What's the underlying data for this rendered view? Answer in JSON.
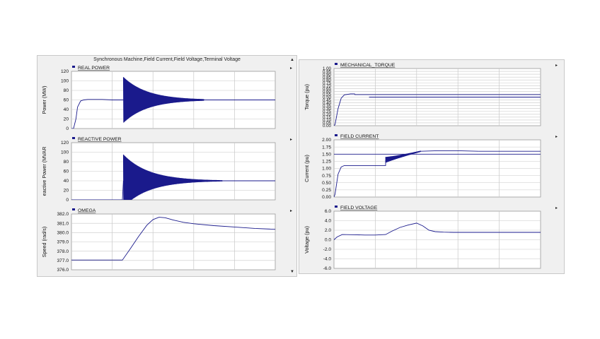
{
  "left_panel": {
    "title": "Synchronous Machine,Field Current,Field Voltage,Terminal Voltage"
  },
  "colors": {
    "trace": "#1a1a8c",
    "grid": "#c8c8c8",
    "plot_bg": "#ffffff",
    "panel_bg": "#f0f0f0"
  },
  "chart_data": [
    {
      "type": "line",
      "legend": "REAL POWER",
      "ylabel": "Power (MW)",
      "ylim": [
        0,
        120
      ],
      "yticks": [
        0,
        20,
        40,
        60,
        80,
        100,
        120
      ],
      "tick_labels": [
        "0",
        "20",
        "40",
        "60",
        "80",
        "100",
        "120"
      ],
      "xlim": [
        0,
        10
      ],
      "grid": true,
      "series": [
        {
          "segments": [
            {
              "x": [
                0.0,
                0.1,
                0.22,
                0.3,
                0.45,
                0.6,
                0.8,
                1.1,
                1.5,
                2.0,
                2.5,
                2.55
              ],
              "y": [
                0,
                0,
                20,
                45,
                58,
                60,
                61,
                61,
                61,
                60,
                60,
                60
              ]
            },
            {
              "x": [
                2.55,
                6.5
              ],
              "y": [
                60,
                60
              ],
              "osc": {
                "center": 60,
                "amp": 48,
                "decay": 0.85,
                "freq": 45
              }
            },
            {
              "x": [
                6.5,
                10.0
              ],
              "y": [
                60,
                60
              ]
            }
          ]
        }
      ]
    },
    {
      "type": "line",
      "legend": "REACTIVE POWER",
      "ylabel": "eactive Power (MVAR",
      "ylim": [
        0,
        120
      ],
      "yticks": [
        0,
        20,
        40,
        60,
        80,
        100,
        120
      ],
      "tick_labels": [
        "0",
        "20",
        "40",
        "60",
        "80",
        "100",
        "120"
      ],
      "xlim": [
        0,
        10
      ],
      "grid": true,
      "series": [
        {
          "segments": [
            {
              "x": [
                0.0,
                2.5,
                2.5,
                2.55
              ],
              "y": [
                0,
                0,
                0,
                40
              ]
            },
            {
              "x": [
                2.55,
                7.4
              ],
              "y": [
                40,
                40
              ],
              "osc": {
                "center": 40,
                "amp": 55,
                "decay": 0.8,
                "freq": 45
              }
            },
            {
              "x": [
                7.4,
                10.0
              ],
              "y": [
                40,
                40
              ]
            }
          ]
        }
      ]
    },
    {
      "type": "line",
      "legend": "OMEGA",
      "ylabel": "Speed (rad/s)",
      "ylim": [
        376.0,
        382.0
      ],
      "yticks": [
        376,
        377,
        378,
        379,
        380,
        381,
        382
      ],
      "tick_labels": [
        "376.0",
        "377.0",
        "378.0",
        "379.0",
        "380.0",
        "381.0",
        "382.0"
      ],
      "xlim": [
        0,
        10
      ],
      "grid": true,
      "series": [
        {
          "segments": [
            {
              "x": [
                0.0,
                2.5,
                2.9,
                3.3,
                3.7,
                4.0,
                4.3,
                4.6,
                5.0,
                5.5,
                6.0,
                7.0,
                8.0,
                9.0,
                10.0
              ],
              "y": [
                377.05,
                377.05,
                378.3,
                379.6,
                380.8,
                381.4,
                381.65,
                381.6,
                381.35,
                381.1,
                380.95,
                380.75,
                380.6,
                380.45,
                380.35
              ]
            }
          ]
        }
      ]
    },
    {
      "type": "line",
      "legend": "MECHANICAL_TORQUE",
      "ylabel": "Torque (pu)",
      "ylim": [
        0,
        1.0
      ],
      "yticks": [
        0,
        0.05,
        0.1,
        0.15,
        0.2,
        0.25,
        0.3,
        0.35,
        0.4,
        0.45,
        0.5,
        0.55,
        0.6,
        0.65,
        0.7,
        0.75,
        0.8,
        0.85,
        0.9,
        0.95,
        1.0
      ],
      "tick_labels": [
        "0.00",
        "0.05",
        "0.10",
        "0.15",
        "0.20",
        "0.25",
        "0.30",
        "0.35",
        "0.40",
        "0.45",
        "0.50",
        "0.55",
        "0.60",
        "0.65",
        "0.70",
        "0.75",
        "0.80",
        "0.85",
        "0.90",
        "0.95",
        "1.00"
      ],
      "xlim": [
        0,
        10
      ],
      "grid": true,
      "series": [
        {
          "segments": [
            {
              "x": [
                0.0,
                0.05,
                0.2,
                0.35,
                0.5,
                0.8,
                1.0,
                1.01,
                1.7,
                10.0
              ],
              "y": [
                0,
                0.02,
                0.3,
                0.48,
                0.54,
                0.555,
                0.555,
                0.545,
                0.545,
                0.545
              ]
            }
          ]
        },
        {
          "segments": [
            {
              "x": [
                1.7,
                10.0
              ],
              "y": [
                0.5,
                0.5
              ]
            }
          ]
        }
      ]
    },
    {
      "type": "line",
      "legend": "FIELD CURRENT",
      "ylabel": "Current (pu)",
      "ylim": [
        0,
        2.0
      ],
      "yticks": [
        0,
        0.25,
        0.5,
        0.75,
        1.0,
        1.25,
        1.5,
        1.75,
        2.0
      ],
      "tick_labels": [
        "0.00",
        "0.25",
        "0.50",
        "0.75",
        "1.00",
        "1.25",
        "1.50",
        "1.75",
        "2.00"
      ],
      "xlim": [
        0,
        10
      ],
      "grid": true,
      "series": [
        {
          "segments": [
            {
              "x": [
                0.0,
                0.05,
                0.2,
                0.35,
                0.5,
                1.0,
                1.5,
                2.0,
                2.5,
                2.5
              ],
              "y": [
                0,
                0.1,
                0.8,
                1.05,
                1.1,
                1.1,
                1.1,
                1.1,
                1.1,
                1.3
              ]
            },
            {
              "x": [
                2.5,
                4.2
              ],
              "y": [
                1.3,
                1.6
              ],
              "osc": {
                "center": 0,
                "amp": 0.1,
                "decay": 1.0,
                "freq": 45
              }
            },
            {
              "x": [
                4.2,
                5.0,
                6.0,
                7.0
              ],
              "y": [
                1.6,
                1.62,
                1.62,
                1.6
              ]
            }
          ]
        },
        {
          "segments": [
            {
              "x": [
                7.0,
                10.0
              ],
              "y": [
                1.6,
                1.6
              ]
            },
            {
              "x": [
                0.0,
                10.0
              ],
              "y": [
                1.5,
                1.5
              ]
            }
          ]
        }
      ]
    },
    {
      "type": "line",
      "legend": "FIELD VOLTAGE",
      "ylabel": "Voltage (pu)",
      "ylim": [
        -6.0,
        6.0
      ],
      "yticks": [
        -6,
        -4,
        -2,
        0,
        2,
        4,
        6
      ],
      "tick_labels": [
        "-6.0",
        "-4.0",
        "-2.0",
        "0.0",
        "2.0",
        "4.0",
        "6.0"
      ],
      "xlim": [
        0,
        10
      ],
      "grid": true,
      "series": [
        {
          "segments": [
            {
              "x": [
                0.0,
                0.15,
                0.4,
                1.0,
                1.5,
                2.0,
                2.5,
                2.8,
                3.2,
                3.6,
                4.0,
                4.3,
                4.6,
                4.9,
                5.3,
                5.8,
                7.0,
                10.0
              ],
              "y": [
                0.0,
                0.6,
                1.1,
                1.05,
                1.0,
                1.0,
                1.1,
                1.8,
                2.6,
                3.1,
                3.5,
                2.9,
                2.0,
                1.7,
                1.6,
                1.55,
                1.55,
                1.55
              ]
            }
          ]
        }
      ]
    }
  ]
}
